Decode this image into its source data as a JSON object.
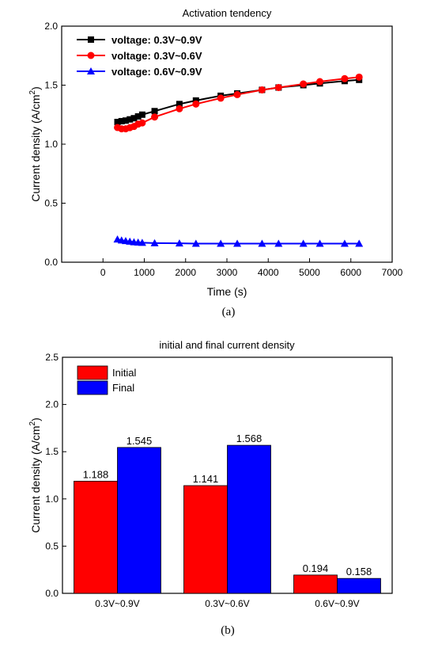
{
  "colors": {
    "black": "#000000",
    "red": "#ff0000",
    "blue": "#0000ff"
  },
  "chart_data": [
    {
      "type": "line",
      "title": "Activation tendency",
      "xlabel": "Time (s)",
      "ylabel_main": "Current density (A/cm",
      "ylabel_sup": "2",
      "ylabel_tail": ")",
      "xlim": [
        -1000,
        7000
      ],
      "ylim": [
        0.0,
        2.0
      ],
      "xticks": [
        "0",
        "1000",
        "2000",
        "3000",
        "4000",
        "5000",
        "6000",
        "7000"
      ],
      "yticks": [
        "0.0",
        "0.5",
        "1.0",
        "1.5",
        "2.0"
      ],
      "caption": "(a)",
      "legend_position": "top-left",
      "series": [
        {
          "name": "voltage: 0.3V~0.9V",
          "color": "#000000",
          "marker": "square",
          "x": [
            350,
            450,
            550,
            650,
            750,
            850,
            950,
            1250,
            1850,
            2250,
            2850,
            3250,
            3850,
            4250,
            4850,
            5250,
            5850,
            6200
          ],
          "y": [
            1.188,
            1.195,
            1.2,
            1.21,
            1.22,
            1.235,
            1.25,
            1.28,
            1.34,
            1.37,
            1.41,
            1.43,
            1.46,
            1.48,
            1.5,
            1.515,
            1.535,
            1.545
          ]
        },
        {
          "name": "voltage: 0.3V~0.6V",
          "color": "#ff0000",
          "marker": "circle",
          "x": [
            350,
            450,
            550,
            650,
            750,
            850,
            950,
            1250,
            1850,
            2250,
            2850,
            3250,
            3850,
            4250,
            4850,
            5250,
            5850,
            6200
          ],
          "y": [
            1.141,
            1.13,
            1.13,
            1.14,
            1.15,
            1.17,
            1.18,
            1.23,
            1.3,
            1.34,
            1.39,
            1.42,
            1.46,
            1.48,
            1.51,
            1.53,
            1.555,
            1.568
          ]
        },
        {
          "name": "voltage: 0.6V~0.9V",
          "color": "#0000ff",
          "marker": "triangle",
          "x": [
            350,
            450,
            550,
            650,
            750,
            850,
            950,
            1250,
            1850,
            2250,
            2850,
            3250,
            3850,
            4250,
            4850,
            5250,
            5850,
            6200
          ],
          "y": [
            0.194,
            0.185,
            0.18,
            0.175,
            0.17,
            0.168,
            0.165,
            0.162,
            0.16,
            0.158,
            0.158,
            0.158,
            0.158,
            0.158,
            0.158,
            0.158,
            0.158,
            0.158
          ]
        }
      ]
    },
    {
      "type": "bar",
      "title": "initial and final current density",
      "ylabel_main": "Current density (A/cm",
      "ylabel_sup": "2",
      "ylabel_tail": ")",
      "ylim": [
        0.0,
        2.5
      ],
      "yticks": [
        "0.0",
        "0.5",
        "1.0",
        "1.5",
        "2.0",
        "2.5"
      ],
      "categories": [
        "0.3V~0.9V",
        "0.3V~0.6V",
        "0.6V~0.9V"
      ],
      "caption": "(b)",
      "legend_position": "top-left",
      "series": [
        {
          "name": "Initial",
          "color": "#ff0000",
          "values": [
            1.188,
            1.141,
            0.194
          ],
          "labels": [
            "1.188",
            "1.141",
            "0.194"
          ]
        },
        {
          "name": "Final",
          "color": "#0000ff",
          "values": [
            1.545,
            1.568,
            0.158
          ],
          "labels": [
            "1.545",
            "1.568",
            "0.158"
          ]
        }
      ]
    }
  ]
}
